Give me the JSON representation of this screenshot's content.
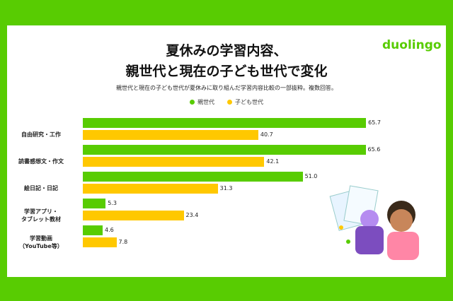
{
  "chart_data": {
    "type": "bar",
    "orientation": "horizontal",
    "title": "夏休みの学習内容、\n親世代と現在の子ども世代で変化",
    "subtitle": "親世代と現在の子ども世代が夏休みに取り組んだ学習内容比較の一部抜粋。複数回答。",
    "logo": "duolingo",
    "categories": [
      "自由研究・工作",
      "読書感想文・作文",
      "絵日記・日記",
      "学習アプリ・\nタブレット教材",
      "学習動画\n（YouTube等）"
    ],
    "series": [
      {
        "name": "親世代",
        "color": "#58cc02",
        "values": [
          65.7,
          65.6,
          51.0,
          5.3,
          4.6
        ],
        "value_labels": [
          "65.7",
          "65.6",
          "51.0",
          "5.3",
          "4.6"
        ]
      },
      {
        "name": "子ども世代",
        "color": "#ffc800",
        "values": [
          40.7,
          42.1,
          31.3,
          23.4,
          7.8
        ],
        "value_labels": [
          "40.7",
          "42.1",
          "31.3",
          "23.4",
          "7.8"
        ]
      }
    ],
    "legend": "top"
  }
}
